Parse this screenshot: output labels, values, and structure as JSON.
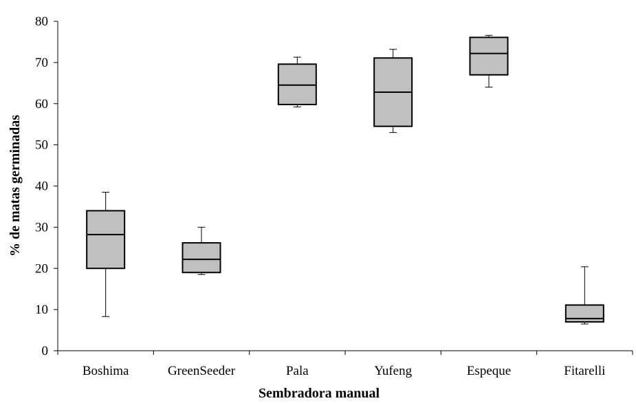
{
  "chart_data": {
    "type": "box",
    "title": "",
    "xlabel": "Sembradora manual",
    "ylabel": "% de matas germinadas",
    "ylim": [
      0,
      80
    ],
    "yticks": [
      0,
      10,
      20,
      30,
      40,
      50,
      60,
      70,
      80
    ],
    "grid": false,
    "legend": "none",
    "box_color": "#c0c0c0",
    "categories": [
      "Boshima",
      "GreenSeeder",
      "Pala",
      "Yufeng",
      "Espeque",
      "Fitarelli"
    ],
    "boxes": [
      {
        "category": "Boshima",
        "min": 8.3,
        "q1": 20,
        "median": 28.2,
        "q3": 34,
        "max": 38.5
      },
      {
        "category": "GreenSeeder",
        "min": 18.5,
        "q1": 19,
        "median": 22.2,
        "q3": 26.2,
        "max": 30
      },
      {
        "category": "Pala",
        "min": 59.2,
        "q1": 59.8,
        "median": 64.5,
        "q3": 69.6,
        "max": 71.3
      },
      {
        "category": "Yufeng",
        "min": 53,
        "q1": 54.5,
        "median": 62.8,
        "q3": 71.1,
        "max": 73.2
      },
      {
        "category": "Espeque",
        "min": 64,
        "q1": 67,
        "median": 72.2,
        "q3": 76.1,
        "max": 76.6
      },
      {
        "category": "Fitarelli",
        "min": 6.5,
        "q1": 7,
        "median": 7.8,
        "q3": 11.1,
        "max": 20.4
      }
    ]
  }
}
